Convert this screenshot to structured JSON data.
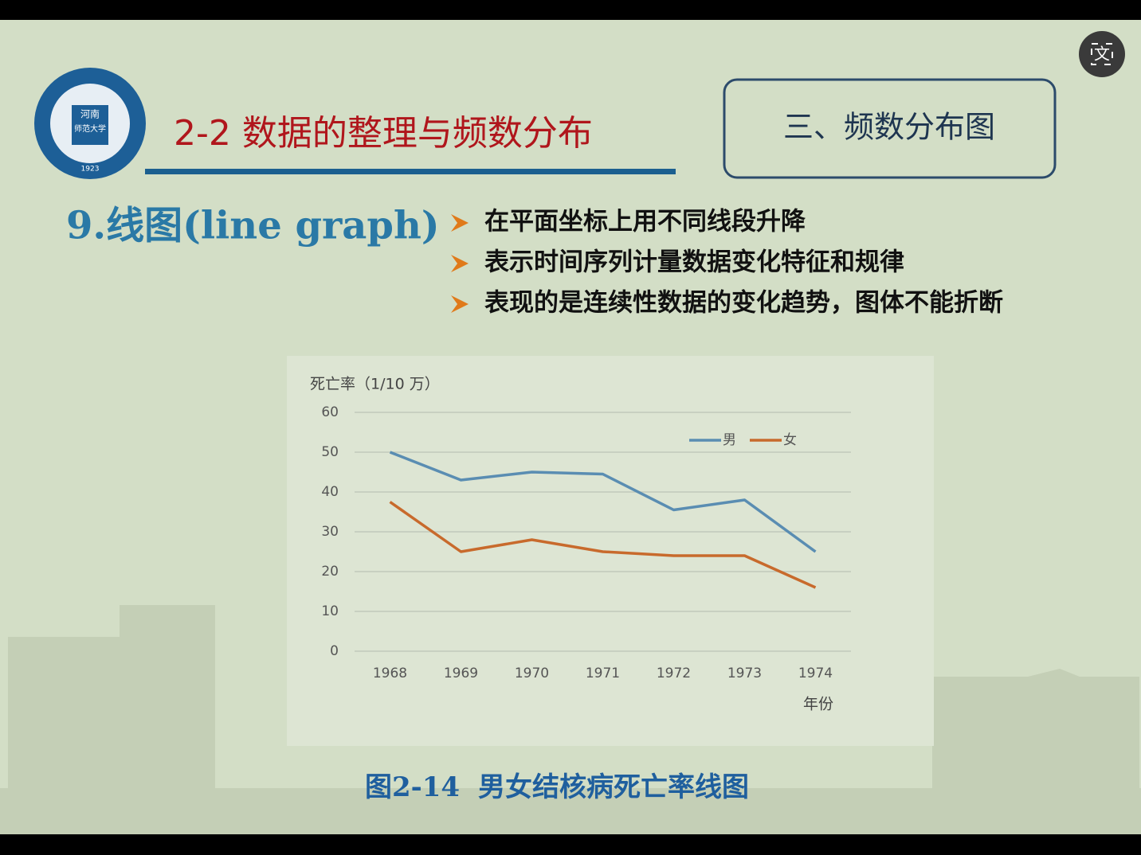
{
  "logo": {
    "top": "河南",
    "middle": "师范大学",
    "bottom": "1923"
  },
  "header": {
    "title": "2-2  数据的整理与频数分布",
    "section": "三、频数分布图"
  },
  "heading": "9.线图(line graph)",
  "bullets": [
    "在平面坐标上用不同线段升降",
    "表示时间序列计量数据变化特征和规律",
    "表现的是连续性数据的变化趋势，图体不能折断"
  ],
  "ui": {
    "translate_button": "文"
  },
  "chart_data": {
    "type": "line",
    "y_label": "死亡率（1/10 万）",
    "x_label": "年份",
    "categories": [
      "1968",
      "1969",
      "1970",
      "1971",
      "1972",
      "1973",
      "1974"
    ],
    "series": [
      {
        "name": "男",
        "color": "#5a8db2",
        "values": [
          50,
          43,
          45,
          44.5,
          35.5,
          38,
          25
        ]
      },
      {
        "name": "女",
        "color": "#c86a2c",
        "values": [
          37.5,
          25,
          28,
          25,
          24,
          24,
          16
        ]
      }
    ],
    "ylim": [
      0,
      60
    ],
    "yticks": [
      0,
      10,
      20,
      30,
      40,
      50,
      60
    ],
    "grid": true,
    "legend": "top-right"
  },
  "caption": {
    "number": "图2-14",
    "text": "男女结核病死亡率线图"
  }
}
